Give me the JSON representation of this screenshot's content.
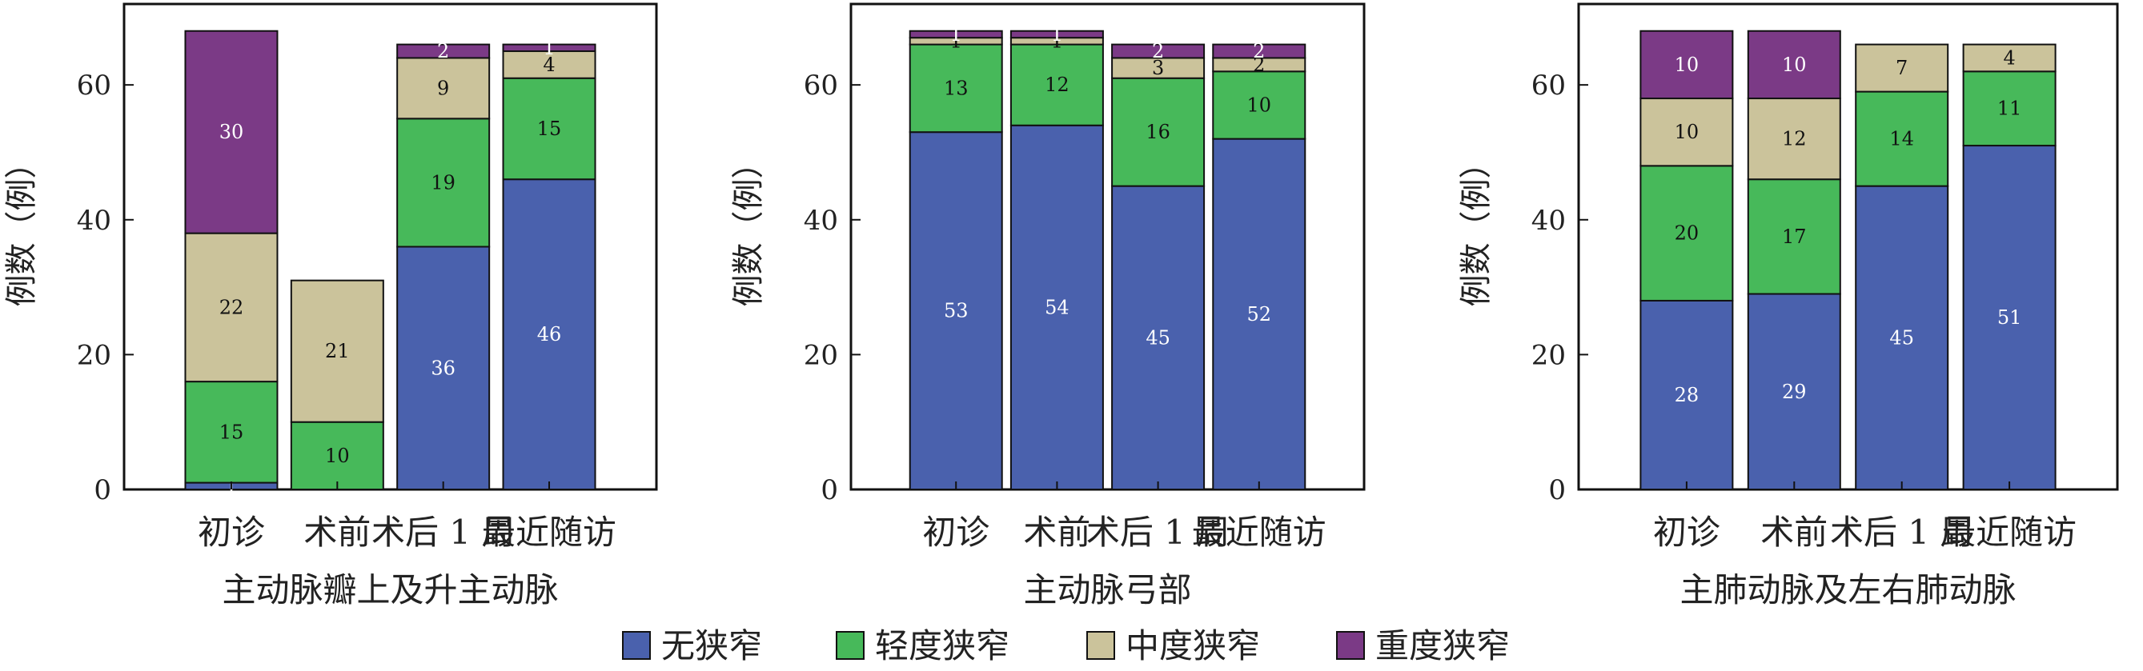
{
  "colors": {
    "none": "#4a61ad",
    "mild": "#47b95a",
    "moderate": "#cbc39b",
    "severe": "#7b3a86",
    "frame": "#111111"
  },
  "legend": [
    {
      "name": "无狭窄",
      "color": "#4a61ad"
    },
    {
      "name": "轻度狭窄",
      "color": "#47b95a"
    },
    {
      "name": "中度狭窄",
      "color": "#cbc39b"
    },
    {
      "name": "重度狭窄",
      "color": "#7b3a86"
    }
  ],
  "chart_data": [
    {
      "type": "bar",
      "stacked": true,
      "xlabel": "主动脉瓣上及升主动脉",
      "ylabel": "例数（例）",
      "ylim": [
        0,
        72
      ],
      "yticks": [
        0,
        20,
        40,
        60
      ],
      "categories": [
        "初诊",
        "术前",
        "术后 1 周",
        "最近随访"
      ],
      "series": [
        {
          "name": "无狭窄",
          "values": [
            1,
            0,
            36,
            46
          ]
        },
        {
          "name": "轻度狭窄",
          "values": [
            15,
            10,
            19,
            15
          ]
        },
        {
          "name": "中度狭窄",
          "values": [
            22,
            21,
            9,
            4
          ]
        },
        {
          "name": "重度狭窄",
          "values": [
            30,
            0,
            2,
            1
          ]
        }
      ]
    },
    {
      "type": "bar",
      "stacked": true,
      "xlabel": "主动脉弓部",
      "ylabel": "例数（例）",
      "ylim": [
        0,
        72
      ],
      "yticks": [
        0,
        20,
        40,
        60
      ],
      "categories": [
        "初诊",
        "术前",
        "术后 1 周",
        "最近随访"
      ],
      "series": [
        {
          "name": "无狭窄",
          "values": [
            53,
            54,
            45,
            52
          ]
        },
        {
          "name": "轻度狭窄",
          "values": [
            13,
            12,
            16,
            10
          ]
        },
        {
          "name": "中度狭窄",
          "values": [
            1,
            1,
            3,
            2
          ]
        },
        {
          "name": "重度狭窄",
          "values": [
            1,
            1,
            2,
            2
          ]
        }
      ]
    },
    {
      "type": "bar",
      "stacked": true,
      "xlabel": "主肺动脉及左右肺动脉",
      "ylabel": "例数（例）",
      "ylim": [
        0,
        72
      ],
      "yticks": [
        0,
        20,
        40,
        60
      ],
      "categories": [
        "初诊",
        "术前",
        "术后 1 周",
        "最近随访"
      ],
      "series": [
        {
          "name": "无狭窄",
          "values": [
            28,
            29,
            45,
            51
          ]
        },
        {
          "name": "轻度狭窄",
          "values": [
            20,
            17,
            14,
            11
          ]
        },
        {
          "name": "中度狭窄",
          "values": [
            10,
            12,
            7,
            4
          ]
        },
        {
          "name": "重度狭窄",
          "values": [
            10,
            10,
            0,
            0
          ]
        }
      ]
    }
  ]
}
